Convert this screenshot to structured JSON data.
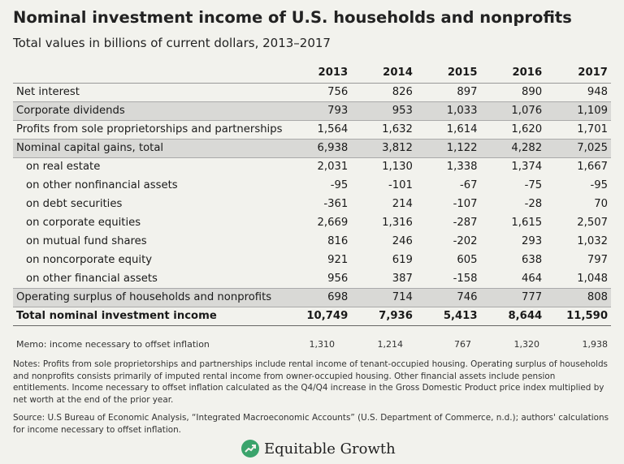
{
  "title": "Nominal investment income of U.S. households and nonprofits",
  "subtitle": "Total values in billions of current dollars, 2013–2017",
  "years": [
    "2013",
    "2014",
    "2015",
    "2016",
    "2017"
  ],
  "rows": [
    {
      "label": "Net interest",
      "values": [
        "756",
        "826",
        "897",
        "890",
        "948"
      ]
    },
    {
      "label": "Corporate dividends",
      "values": [
        "793",
        "953",
        "1,033",
        "1,076",
        "1,109"
      ]
    },
    {
      "label": "Profits from sole proprietorships and partnerships",
      "values": [
        "1,564",
        "1,632",
        "1,614",
        "1,620",
        "1,701"
      ]
    },
    {
      "label": "Nominal capital gains, total",
      "values": [
        "6,938",
        "3,812",
        "1,122",
        "4,282",
        "7,025"
      ]
    },
    {
      "label": "on real estate",
      "values": [
        "2,031",
        "1,130",
        "1,338",
        "1,374",
        "1,667"
      ]
    },
    {
      "label": "on other nonfinancial assets",
      "values": [
        "-95",
        "-101",
        "-67",
        "-75",
        "-95"
      ]
    },
    {
      "label": "on debt securities",
      "values": [
        "-361",
        "214",
        "-107",
        "-28",
        "70"
      ]
    },
    {
      "label": "on corporate equities",
      "values": [
        "2,669",
        "1,316",
        "-287",
        "1,615",
        "2,507"
      ]
    },
    {
      "label": "on mutual fund shares",
      "values": [
        "816",
        "246",
        "-202",
        "293",
        "1,032"
      ]
    },
    {
      "label": "on noncorporate equity",
      "values": [
        "921",
        "619",
        "605",
        "638",
        "797"
      ]
    },
    {
      "label": "on other financial assets",
      "values": [
        "956",
        "387",
        "-158",
        "464",
        "1,048"
      ]
    },
    {
      "label": "Operating surplus of households and nonprofits",
      "values": [
        "698",
        "714",
        "746",
        "777",
        "808"
      ]
    },
    {
      "label": "Total nominal investment income",
      "values": [
        "10,749",
        "7,936",
        "5,413",
        "8,644",
        "11,590"
      ]
    }
  ],
  "memo": {
    "label": "Memo: income necessary to offset inflation",
    "values": [
      "1,310",
      "1,214",
      "767",
      "1,320",
      "1,938"
    ]
  },
  "notes": "Notes: Profits from sole proprietorships and partnerships include rental income of tenant-occupied housing. Operating surplus of households and nonprofits consists primarily of imputed rental income from owner-occupied housing. Other financial assets include pension entitlements. Income necessary to offset inflation calculated as the Q4/Q4 increase in the Gross Domestic Product price index multiplied by net worth at the end of the prior year.",
  "source": "Source: U.S Bureau of Economic Analysis, “Integrated Macroeconomic Accounts” (U.S. Department of Commerce, n.d.); authors' calculations for income necessary to offset inflation.",
  "logo": {
    "text": "Equitable Growth",
    "icon": "trend-up-icon",
    "color": "#3aa36b"
  }
}
